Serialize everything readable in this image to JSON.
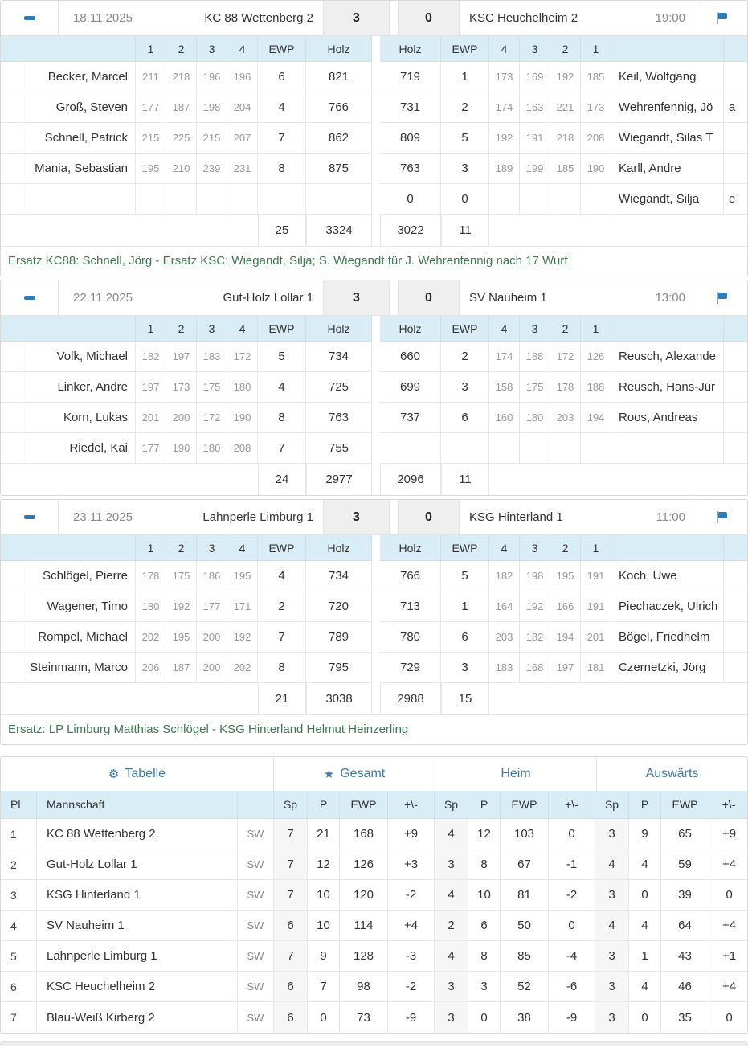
{
  "colors": {
    "accent_blue": "#2f7cb5",
    "link_blue": "#4079ab",
    "header_bg": "#d9edf7",
    "score_bg": "#efefef",
    "note_green": "#3e7754"
  },
  "matches": [
    {
      "date": "18.11.2025",
      "time": "19:00",
      "home_team": "KC 88 Wettenberg 2",
      "away_team": "KSC Heuchelheim 2",
      "home_points": "3",
      "away_points": "0",
      "cols_left": [
        "1",
        "2",
        "3",
        "4",
        "EWP",
        "Holz"
      ],
      "cols_right": [
        "Holz",
        "EWP",
        "4",
        "3",
        "2",
        "1"
      ],
      "players": [
        {
          "home": "Becker, Marcel",
          "h_throws": [
            "211",
            "218",
            "196",
            "196"
          ],
          "h_ewp": "6",
          "h_holz": "821",
          "a_holz": "719",
          "a_ewp": "1",
          "a_throws": [
            "173",
            "169",
            "192",
            "185"
          ],
          "away": "Keil, Wolfgang",
          "tail": ""
        },
        {
          "home": "Groß, Steven",
          "h_throws": [
            "177",
            "187",
            "198",
            "204"
          ],
          "h_ewp": "4",
          "h_holz": "766",
          "a_holz": "731",
          "a_ewp": "2",
          "a_throws": [
            "174",
            "163",
            "221",
            "173"
          ],
          "away": "Wehrenfennig, Jö",
          "tail": "a"
        },
        {
          "home": "Schnell, Patrick",
          "h_throws": [
            "215",
            "225",
            "215",
            "207"
          ],
          "h_ewp": "7",
          "h_holz": "862",
          "a_holz": "809",
          "a_ewp": "5",
          "a_throws": [
            "192",
            "191",
            "218",
            "208"
          ],
          "away": "Wiegandt, Silas T",
          "tail": ""
        },
        {
          "home": "Mania, Sebastian",
          "h_throws": [
            "195",
            "210",
            "239",
            "231"
          ],
          "h_ewp": "8",
          "h_holz": "875",
          "a_holz": "763",
          "a_ewp": "3",
          "a_throws": [
            "189",
            "199",
            "185",
            "190"
          ],
          "away": "Karll, Andre",
          "tail": ""
        },
        {
          "home": "",
          "h_throws": [
            "",
            "",
            "",
            ""
          ],
          "h_ewp": "",
          "h_holz": "",
          "a_holz": "0",
          "a_ewp": "0",
          "a_throws": [
            "",
            "",
            "",
            ""
          ],
          "away": "Wiegandt, Silja",
          "tail": "e"
        }
      ],
      "totals": {
        "h_ewp": "25",
        "h_holz": "3324",
        "a_holz": "3022",
        "a_ewp": "11"
      },
      "note": "Ersatz KC88: Schnell, Jörg - Ersatz KSC: Wiegandt, Silja; S. Wiegandt für J. Wehrenfennig nach 17 Wurf"
    },
    {
      "date": "22.11.2025",
      "time": "13:00",
      "home_team": "Gut-Holz Lollar 1",
      "away_team": "SV Nauheim 1",
      "home_points": "3",
      "away_points": "0",
      "cols_left": [
        "1",
        "2",
        "3",
        "4",
        "EWP",
        "Holz"
      ],
      "cols_right": [
        "Holz",
        "EWP",
        "4",
        "3",
        "2",
        "1"
      ],
      "players": [
        {
          "home": "Volk, Michael",
          "h_throws": [
            "182",
            "197",
            "183",
            "172"
          ],
          "h_ewp": "5",
          "h_holz": "734",
          "a_holz": "660",
          "a_ewp": "2",
          "a_throws": [
            "174",
            "188",
            "172",
            "126"
          ],
          "away": "Reusch, Alexande",
          "tail": ""
        },
        {
          "home": "Linker, Andre",
          "h_throws": [
            "197",
            "173",
            "175",
            "180"
          ],
          "h_ewp": "4",
          "h_holz": "725",
          "a_holz": "699",
          "a_ewp": "3",
          "a_throws": [
            "158",
            "175",
            "178",
            "188"
          ],
          "away": "Reusch, Hans-Jür",
          "tail": ""
        },
        {
          "home": "Korn, Lukas",
          "h_throws": [
            "201",
            "200",
            "172",
            "190"
          ],
          "h_ewp": "8",
          "h_holz": "763",
          "a_holz": "737",
          "a_ewp": "6",
          "a_throws": [
            "160",
            "180",
            "203",
            "194"
          ],
          "away": "Roos, Andreas",
          "tail": ""
        },
        {
          "home": "Riedel, Kai",
          "h_throws": [
            "177",
            "190",
            "180",
            "208"
          ],
          "h_ewp": "7",
          "h_holz": "755",
          "a_holz": "",
          "a_ewp": "",
          "a_throws": [
            "",
            "",
            "",
            ""
          ],
          "away": "",
          "tail": ""
        }
      ],
      "totals": {
        "h_ewp": "24",
        "h_holz": "2977",
        "a_holz": "2096",
        "a_ewp": "11"
      },
      "note": ""
    },
    {
      "date": "23.11.2025",
      "time": "11:00",
      "home_team": "Lahnperle Limburg 1",
      "away_team": "KSG Hinterland 1",
      "home_points": "3",
      "away_points": "0",
      "cols_left": [
        "1",
        "2",
        "3",
        "4",
        "EWP",
        "Holz"
      ],
      "cols_right": [
        "Holz",
        "EWP",
        "4",
        "3",
        "2",
        "1"
      ],
      "players": [
        {
          "home": "Schlögel, Pierre",
          "h_throws": [
            "178",
            "175",
            "186",
            "195"
          ],
          "h_ewp": "4",
          "h_holz": "734",
          "a_holz": "766",
          "a_ewp": "5",
          "a_throws": [
            "182",
            "198",
            "195",
            "191"
          ],
          "away": "Koch, Uwe",
          "tail": ""
        },
        {
          "home": "Wagener, Timo",
          "h_throws": [
            "180",
            "192",
            "177",
            "171"
          ],
          "h_ewp": "2",
          "h_holz": "720",
          "a_holz": "713",
          "a_ewp": "1",
          "a_throws": [
            "164",
            "192",
            "166",
            "191"
          ],
          "away": "Piechaczek, Ulrich",
          "tail": ""
        },
        {
          "home": "Rompel, Michael",
          "h_throws": [
            "202",
            "195",
            "200",
            "192"
          ],
          "h_ewp": "7",
          "h_holz": "789",
          "a_holz": "780",
          "a_ewp": "6",
          "a_throws": [
            "203",
            "182",
            "194",
            "201"
          ],
          "away": "Bögel, Friedhelm",
          "tail": ""
        },
        {
          "home": "Steinmann, Marco",
          "h_throws": [
            "206",
            "187",
            "200",
            "202"
          ],
          "h_ewp": "8",
          "h_holz": "795",
          "a_holz": "729",
          "a_ewp": "3",
          "a_throws": [
            "183",
            "168",
            "197",
            "181"
          ],
          "away": "Czernetzki, Jörg",
          "tail": ""
        }
      ],
      "totals": {
        "h_ewp": "21",
        "h_holz": "3038",
        "a_holz": "2988",
        "a_ewp": "15"
      },
      "note": "Ersatz: LP Limburg Matthias Schlögel - KSG Hinterland Helmut Heinzerling"
    }
  ],
  "standings": {
    "groups": [
      {
        "label": "Tabelle",
        "icon": "gear-icon"
      },
      {
        "label": "Gesamt",
        "icon": "star-icon"
      },
      {
        "label": "Heim",
        "icon": ""
      },
      {
        "label": "Auswärts",
        "icon": ""
      }
    ],
    "columns": {
      "pl": "Pl.",
      "team": "Mannschaft",
      "sp": "Sp",
      "p": "P",
      "ewp": "EWP",
      "pm": "+\\-"
    },
    "sw_label": "SW",
    "rows": [
      {
        "pl": "1",
        "team": "KC 88 Wettenberg 2",
        "gesamt": [
          "7",
          "21",
          "168",
          "+9"
        ],
        "heim": [
          "4",
          "12",
          "103",
          "0"
        ],
        "auswaerts": [
          "3",
          "9",
          "65",
          "+9"
        ]
      },
      {
        "pl": "2",
        "team": "Gut-Holz Lollar 1",
        "gesamt": [
          "7",
          "12",
          "126",
          "+3"
        ],
        "heim": [
          "3",
          "8",
          "67",
          "-1"
        ],
        "auswaerts": [
          "4",
          "4",
          "59",
          "+4"
        ]
      },
      {
        "pl": "3",
        "team": "KSG Hinterland 1",
        "gesamt": [
          "7",
          "10",
          "120",
          "-2"
        ],
        "heim": [
          "4",
          "10",
          "81",
          "-2"
        ],
        "auswaerts": [
          "3",
          "0",
          "39",
          "0"
        ]
      },
      {
        "pl": "4",
        "team": "SV Nauheim 1",
        "gesamt": [
          "6",
          "10",
          "114",
          "+4"
        ],
        "heim": [
          "2",
          "6",
          "50",
          "0"
        ],
        "auswaerts": [
          "4",
          "4",
          "64",
          "+4"
        ]
      },
      {
        "pl": "5",
        "team": "Lahnperle Limburg 1",
        "gesamt": [
          "7",
          "9",
          "128",
          "-3"
        ],
        "heim": [
          "4",
          "8",
          "85",
          "-4"
        ],
        "auswaerts": [
          "3",
          "1",
          "43",
          "+1"
        ]
      },
      {
        "pl": "6",
        "team": "KSC Heuchelheim 2",
        "gesamt": [
          "6",
          "7",
          "98",
          "-2"
        ],
        "heim": [
          "3",
          "3",
          "52",
          "-6"
        ],
        "auswaerts": [
          "3",
          "4",
          "46",
          "+4"
        ]
      },
      {
        "pl": "7",
        "team": "Blau-Weiß Kirberg 2",
        "gesamt": [
          "6",
          "0",
          "73",
          "-9"
        ],
        "heim": [
          "3",
          "0",
          "38",
          "-9"
        ],
        "auswaerts": [
          "3",
          "0",
          "35",
          "0"
        ]
      }
    ]
  }
}
